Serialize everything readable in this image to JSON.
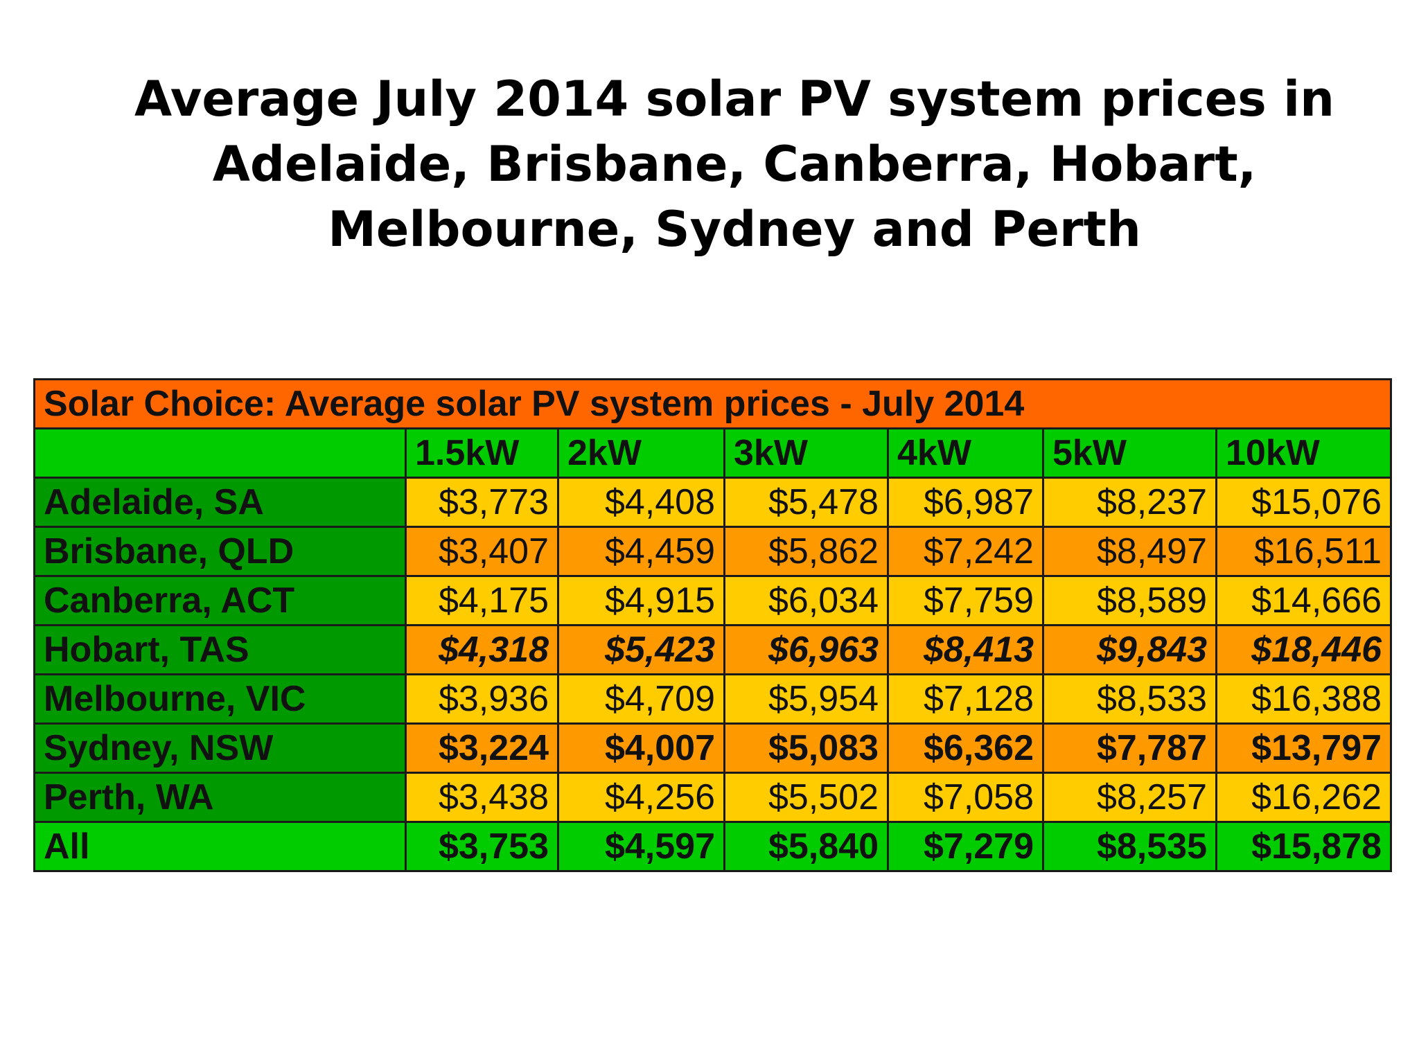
{
  "title": "Average July 2014 solar PV system prices in Adelaide, Brisbane, Canberra, Hobart, Melbourne, Sydney and Perth",
  "colors": {
    "caption_bg": "#ff6600",
    "header_bg": "#00cc00",
    "city_bg": "#009900",
    "row_yellow": "#ffcc00",
    "row_orange": "#ff9900",
    "all_row_bg": "#00cc00"
  },
  "chart_data": {
    "type": "table",
    "title": "Solar Choice: Average solar PV system prices - July 2014",
    "columns": [
      "1.5kW",
      "2kW",
      "3kW",
      "4kW",
      "5kW",
      "10kW"
    ],
    "rows": [
      {
        "city": "Adelaide, SA",
        "values": [
          "$3,773",
          "$4,408",
          "$5,478",
          "$6,987",
          "$8,237",
          "$15,076"
        ],
        "shade": "yellow",
        "style": "normal"
      },
      {
        "city": "Brisbane, QLD",
        "values": [
          "$3,407",
          "$4,459",
          "$5,862",
          "$7,242",
          "$8,497",
          "$16,511"
        ],
        "shade": "orange",
        "style": "normal"
      },
      {
        "city": "Canberra, ACT",
        "values": [
          "$4,175",
          "$4,915",
          "$6,034",
          "$7,759",
          "$8,589",
          "$14,666"
        ],
        "shade": "yellow",
        "style": "normal"
      },
      {
        "city": "Hobart, TAS",
        "values": [
          "$4,318",
          "$5,423",
          "$6,963",
          "$8,413",
          "$9,843",
          "$18,446"
        ],
        "shade": "orange",
        "style": "bold-italic"
      },
      {
        "city": "Melbourne, VIC",
        "values": [
          "$3,936",
          "$4,709",
          "$5,954",
          "$7,128",
          "$8,533",
          "$16,388"
        ],
        "shade": "yellow",
        "style": "normal"
      },
      {
        "city": "Sydney, NSW",
        "values": [
          "$3,224",
          "$4,007",
          "$5,083",
          "$6,362",
          "$7,787",
          "$13,797"
        ],
        "shade": "orange",
        "style": "bold"
      },
      {
        "city": "Perth, WA",
        "values": [
          "$3,438",
          "$4,256",
          "$5,502",
          "$7,058",
          "$8,257",
          "$16,262"
        ],
        "shade": "yellow",
        "style": "normal"
      },
      {
        "city": "All",
        "values": [
          "$3,753",
          "$4,597",
          "$5,840",
          "$7,279",
          "$8,535",
          "$15,878"
        ],
        "shade": "green",
        "style": "bold"
      }
    ]
  }
}
